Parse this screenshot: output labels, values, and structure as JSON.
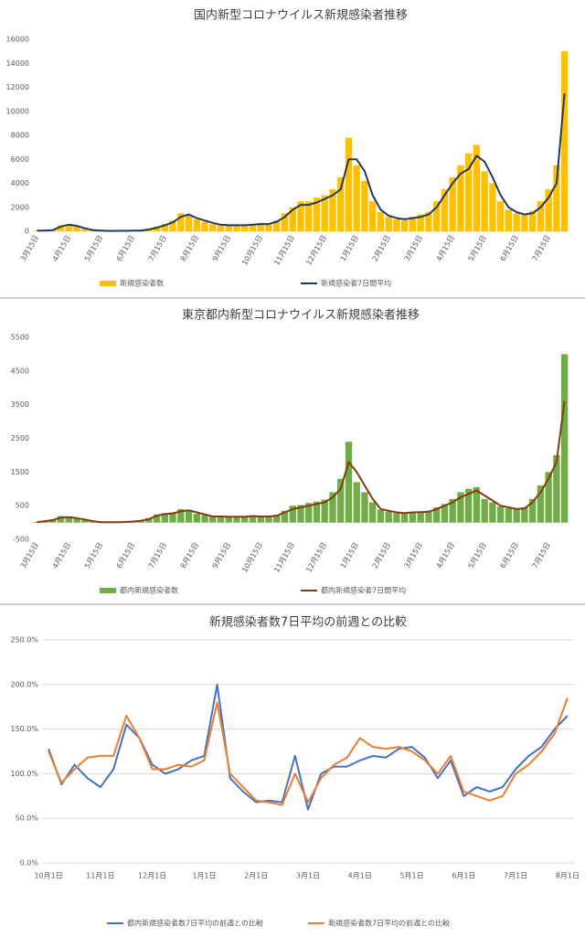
{
  "chart_data": [
    {
      "type": "combo",
      "title": "国内新型コロナウイルス新規感染者推移",
      "categories": [
        "3月15日",
        null,
        null,
        null,
        "4月15日",
        null,
        null,
        null,
        "5月15日",
        null,
        null,
        null,
        "6月15日",
        null,
        null,
        null,
        "7月15日",
        null,
        null,
        null,
        "8月15日",
        null,
        null,
        null,
        "9月15日",
        null,
        null,
        null,
        "10月15日",
        null,
        null,
        null,
        "11月15日",
        null,
        null,
        null,
        "12月15日",
        null,
        null,
        null,
        "1月15日",
        null,
        null,
        null,
        "2月15日",
        null,
        null,
        null,
        "3月15日",
        null,
        null,
        null,
        "4月15日",
        null,
        null,
        null,
        "5月15日",
        null,
        null,
        null,
        "6月15日",
        null,
        null,
        null,
        "7月15日",
        null,
        null
      ],
      "series": [
        {
          "name": "新規感染者数",
          "type": "bar",
          "color": "#ffc000",
          "values": [
            40,
            70,
            150,
            500,
            600,
            400,
            200,
            90,
            50,
            30,
            40,
            50,
            60,
            60,
            200,
            400,
            600,
            900,
            1500,
            1300,
            1000,
            800,
            600,
            500,
            550,
            450,
            450,
            600,
            700,
            650,
            900,
            1500,
            2000,
            2500,
            2500,
            2800,
            3000,
            3500,
            4500,
            7800,
            5500,
            4200,
            2500,
            1600,
            1200,
            1000,
            900,
            1200,
            1400,
            1600,
            2500,
            3500,
            4500,
            5500,
            6500,
            7200,
            5000,
            4000,
            2500,
            1800,
            1500,
            1400,
            1700,
            2500,
            3500,
            5500,
            15000
          ]
        },
        {
          "name": "新規感染者7日間平均",
          "type": "line",
          "color": "#203864",
          "values": [
            50,
            60,
            100,
            400,
            550,
            450,
            250,
            100,
            60,
            30,
            40,
            40,
            50,
            50,
            150,
            300,
            500,
            750,
            1200,
            1400,
            1100,
            900,
            700,
            550,
            500,
            500,
            500,
            550,
            600,
            600,
            800,
            1200,
            1800,
            2200,
            2200,
            2400,
            2700,
            3000,
            3500,
            6000,
            6000,
            5000,
            3000,
            1800,
            1300,
            1100,
            1000,
            1100,
            1200,
            1400,
            2000,
            3000,
            4000,
            4800,
            5200,
            6300,
            5800,
            4500,
            3000,
            2000,
            1600,
            1400,
            1500,
            2000,
            2800,
            4000,
            11500
          ]
        }
      ],
      "ylim": [
        0,
        16000
      ],
      "yticks": [
        0,
        2000,
        4000,
        6000,
        8000,
        10000,
        12000,
        14000,
        16000
      ],
      "grid": false
    },
    {
      "type": "combo",
      "title": "東京都内新型コロナウイルス新規感染者推移",
      "categories": [
        "3月15日",
        null,
        null,
        null,
        "4月15日",
        null,
        null,
        null,
        "5月15日",
        null,
        null,
        null,
        "6月15日",
        null,
        null,
        null,
        "7月15日",
        null,
        null,
        null,
        "8月15日",
        null,
        null,
        null,
        "9月15日",
        null,
        null,
        null,
        "10月15日",
        null,
        null,
        null,
        "11月15日",
        null,
        null,
        null,
        "12月15日",
        null,
        null,
        null,
        "1月15日",
        null,
        null,
        null,
        "2月15日",
        null,
        null,
        null,
        "3月15日",
        null,
        null,
        null,
        "4月15日",
        null,
        null,
        null,
        "5月15日",
        null,
        null,
        null,
        "6月15日",
        null,
        null,
        null,
        "7月15日",
        null,
        null
      ],
      "series": [
        {
          "name": "都内新規感染者数",
          "type": "bar",
          "color": "#70ad47",
          "values": [
            15,
            50,
            100,
            190,
            180,
            120,
            80,
            30,
            10,
            10,
            15,
            20,
            40,
            60,
            130,
            240,
            280,
            300,
            400,
            380,
            260,
            220,
            170,
            200,
            160,
            180,
            160,
            210,
            200,
            190,
            230,
            350,
            500,
            520,
            580,
            620,
            680,
            900,
            1300,
            2400,
            1200,
            900,
            600,
            380,
            330,
            280,
            260,
            320,
            330,
            350,
            450,
            550,
            700,
            900,
            1000,
            1050,
            700,
            600,
            480,
            430,
            380,
            450,
            700,
            1100,
            1500,
            2000,
            5000
          ]
        },
        {
          "name": "都内新規感染者7日間平均",
          "type": "line",
          "color": "#843c0c",
          "values": [
            10,
            40,
            70,
            150,
            160,
            130,
            90,
            40,
            10,
            10,
            10,
            15,
            30,
            50,
            100,
            200,
            250,
            270,
            330,
            360,
            300,
            240,
            180,
            180,
            170,
            170,
            170,
            190,
            180,
            180,
            200,
            300,
            400,
            450,
            500,
            550,
            600,
            750,
            1000,
            1800,
            1500,
            1100,
            700,
            400,
            350,
            300,
            280,
            300,
            310,
            320,
            400,
            500,
            600,
            750,
            850,
            950,
            800,
            650,
            500,
            450,
            400,
            420,
            600,
            900,
            1300,
            1800,
            3600
          ]
        }
      ],
      "ylim": [
        -500,
        5500
      ],
      "yticks": [
        -500,
        500,
        1500,
        2500,
        3500,
        4500,
        5500
      ],
      "grid": false
    },
    {
      "type": "line",
      "title": "新規感染者数7日平均の前週との比較",
      "categories": [
        "10月1日",
        null,
        null,
        null,
        "11月1日",
        null,
        null,
        null,
        "12月1日",
        null,
        null,
        null,
        "1月1日",
        null,
        null,
        null,
        "2月1日",
        null,
        null,
        null,
        "3月1日",
        null,
        null,
        null,
        "4月1日",
        null,
        null,
        null,
        "5月1日",
        null,
        null,
        null,
        "6月1日",
        null,
        null,
        null,
        "7月1日",
        null,
        null,
        null,
        "8月1日"
      ],
      "series": [
        {
          "name": "都内新規感染者数7日平均の前週との比較",
          "type": "line",
          "color": "#4472c4",
          "values": [
            128,
            88,
            110,
            95,
            85,
            105,
            155,
            140,
            110,
            100,
            105,
            115,
            120,
            200,
            95,
            80,
            68,
            70,
            68,
            120,
            60,
            100,
            108,
            108,
            115,
            120,
            118,
            128,
            130,
            118,
            95,
            115,
            75,
            85,
            80,
            85,
            105,
            120,
            130,
            150,
            165
          ]
        },
        {
          "name": "新規感染者数7日平均の前週との比較",
          "type": "line",
          "color": "#ed7d31",
          "values": [
            125,
            90,
            105,
            118,
            120,
            120,
            165,
            140,
            105,
            105,
            110,
            108,
            115,
            180,
            100,
            85,
            70,
            68,
            65,
            100,
            68,
            95,
            110,
            118,
            140,
            130,
            128,
            130,
            125,
            115,
            100,
            120,
            80,
            75,
            70,
            75,
            100,
            110,
            125,
            145,
            185
          ]
        }
      ],
      "ylim": [
        0,
        250
      ],
      "yticks": [
        {
          "value": 0,
          "label": "0.0%"
        },
        {
          "value": 50,
          "label": "50.0%"
        },
        {
          "value": 100,
          "label": "100.0%"
        },
        {
          "value": 150,
          "label": "150.0%"
        },
        {
          "value": 200,
          "label": "200.0%"
        },
        {
          "value": 250,
          "label": "250.0%"
        }
      ],
      "grid": true
    }
  ]
}
